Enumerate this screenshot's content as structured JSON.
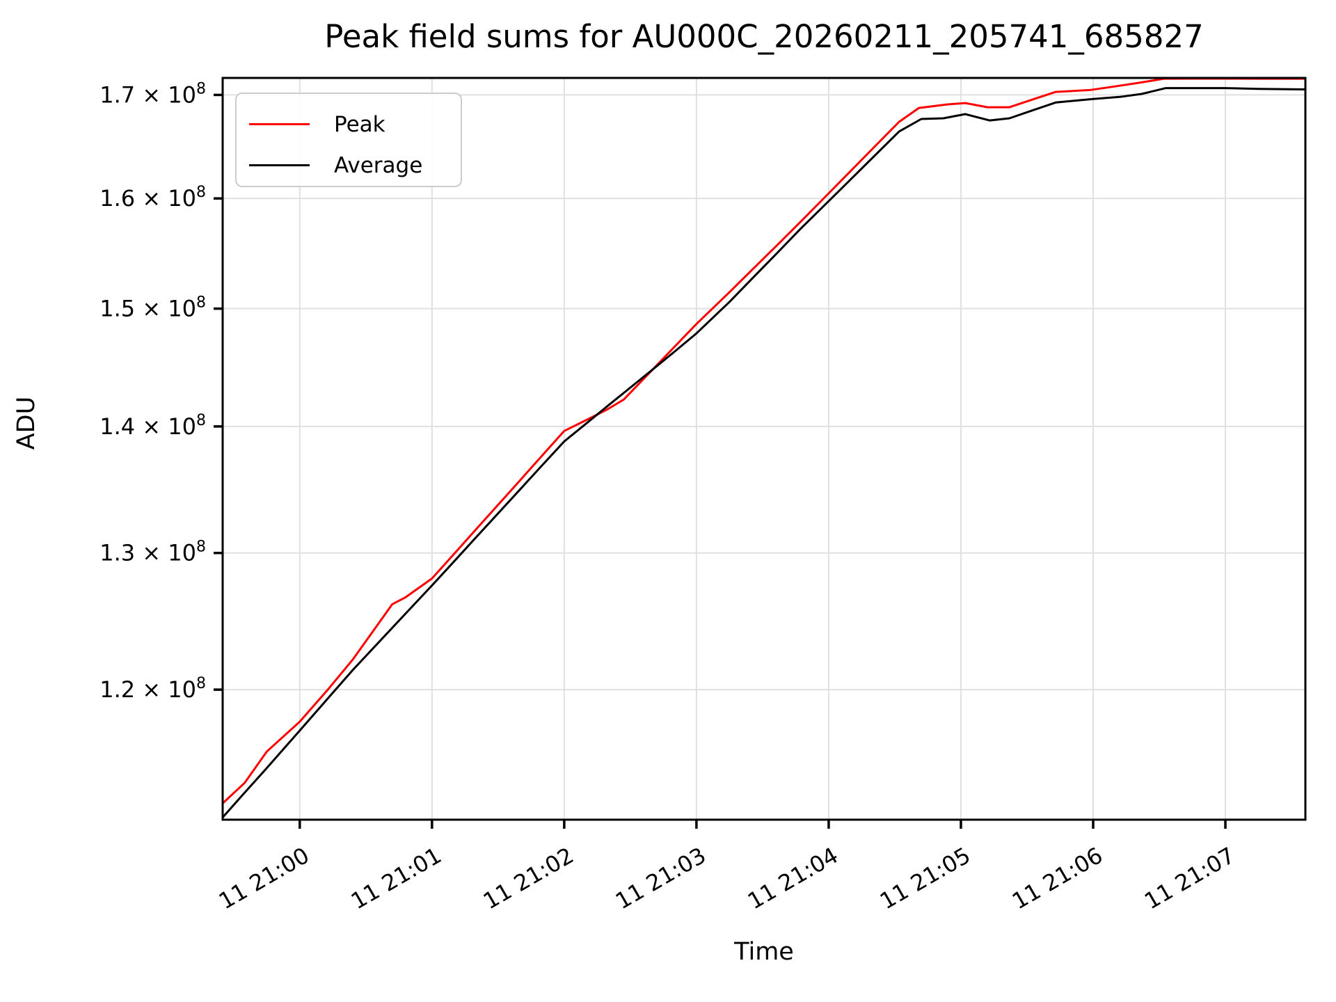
{
  "chart_data": {
    "type": "line",
    "title": "Peak field sums for AU000C_20260211_205741_685827",
    "xlabel": "Time",
    "ylabel": "ADU",
    "y_scale": "log",
    "grid": true,
    "x_unit": "minutes relative to tick '11 21:00'",
    "y_unit_multiplier": 100000000.0,
    "xlim": [
      -0.583,
      7.605
    ],
    "ylim_1e8": [
      1.112,
      1.717
    ],
    "x_ticks": [
      {
        "m": 0,
        "label": "11 21:00"
      },
      {
        "m": 1,
        "label": "11 21:01"
      },
      {
        "m": 2,
        "label": "11 21:02"
      },
      {
        "m": 3,
        "label": "11 21:03"
      },
      {
        "m": 4,
        "label": "11 21:04"
      },
      {
        "m": 5,
        "label": "11 21:05"
      },
      {
        "m": 6,
        "label": "11 21:06"
      },
      {
        "m": 7,
        "label": "11 21:07"
      }
    ],
    "y_ticks": [
      {
        "v_1e8": 1.2,
        "mantissa": "1.2",
        "times": "×",
        "base": "10",
        "exponent": "8"
      },
      {
        "v_1e8": 1.3,
        "mantissa": "1.3",
        "times": "×",
        "base": "10",
        "exponent": "8"
      },
      {
        "v_1e8": 1.4,
        "mantissa": "1.4",
        "times": "×",
        "base": "10",
        "exponent": "8"
      },
      {
        "v_1e8": 1.5,
        "mantissa": "1.5",
        "times": "×",
        "base": "10",
        "exponent": "8"
      },
      {
        "v_1e8": 1.6,
        "mantissa": "1.6",
        "times": "×",
        "base": "10",
        "exponent": "8"
      },
      {
        "v_1e8": 1.7,
        "mantissa": "1.7",
        "times": "×",
        "base": "10",
        "exponent": "8"
      }
    ],
    "legend": {
      "position": "upper left",
      "entries": [
        {
          "name": "Peak",
          "color": "#ff0000"
        },
        {
          "name": "Average",
          "color": "#000000"
        }
      ]
    },
    "series": [
      {
        "name": "Peak",
        "color": "#ff0000",
        "points_m_v1e8": [
          [
            -0.583,
            1.1227
          ],
          [
            -0.417,
            1.1362
          ],
          [
            -0.25,
            1.1572
          ],
          [
            0,
            1.1777
          ],
          [
            0.217,
            1.2005
          ],
          [
            0.4,
            1.2212
          ],
          [
            0.7,
            1.2616
          ],
          [
            0.8,
            1.2667
          ],
          [
            1,
            1.2807
          ],
          [
            1.167,
            1.2993
          ],
          [
            1.333,
            1.3181
          ],
          [
            1.5,
            1.3372
          ],
          [
            1.667,
            1.3566
          ],
          [
            1.833,
            1.3763
          ],
          [
            2,
            1.3963
          ],
          [
            2.167,
            1.4053
          ],
          [
            2.317,
            1.4135
          ],
          [
            2.45,
            1.4222
          ],
          [
            2.617,
            1.4414
          ],
          [
            2.833,
            1.4668
          ],
          [
            3,
            1.4866
          ],
          [
            3.25,
            1.5146
          ],
          [
            3.417,
            1.534
          ],
          [
            3.617,
            1.5576
          ],
          [
            3.783,
            1.5777
          ],
          [
            3.95,
            1.5985
          ],
          [
            4.15,
            1.6238
          ],
          [
            4.333,
            1.6474
          ],
          [
            4.533,
            1.6735
          ],
          [
            4.683,
            1.6871
          ],
          [
            4.9,
            1.6906
          ],
          [
            5.033,
            1.6919
          ],
          [
            5.2,
            1.6878
          ],
          [
            5.367,
            1.6878
          ],
          [
            5.533,
            1.695
          ],
          [
            5.717,
            1.703
          ],
          [
            5.983,
            1.705
          ],
          [
            6.2,
            1.7092
          ],
          [
            6.367,
            1.7125
          ],
          [
            6.533,
            1.7162
          ],
          [
            6.75,
            1.7163
          ],
          [
            7,
            1.7163
          ],
          [
            7.25,
            1.7162
          ],
          [
            7.605,
            1.7162
          ]
        ]
      },
      {
        "name": "Average",
        "color": "#000000",
        "points_m_v1e8": [
          [
            -0.583,
            1.1135
          ],
          [
            -0.417,
            1.1297
          ],
          [
            -0.25,
            1.1461
          ],
          [
            0,
            1.1716
          ],
          [
            0.217,
            1.1943
          ],
          [
            0.4,
            1.2138
          ],
          [
            0.7,
            1.2443
          ],
          [
            0.8,
            1.2546
          ],
          [
            1,
            1.2755
          ],
          [
            1.167,
            1.2936
          ],
          [
            1.333,
            1.3119
          ],
          [
            1.5,
            1.3305
          ],
          [
            1.667,
            1.3494
          ],
          [
            1.833,
            1.3685
          ],
          [
            2,
            1.3878
          ],
          [
            2.167,
            1.4024
          ],
          [
            2.333,
            1.4173
          ],
          [
            2.5,
            1.4322
          ],
          [
            2.667,
            1.4473
          ],
          [
            2.833,
            1.4626
          ],
          [
            3,
            1.4784
          ],
          [
            3.25,
            1.506
          ],
          [
            3.417,
            1.5261
          ],
          [
            3.617,
            1.5505
          ],
          [
            3.783,
            1.5713
          ],
          [
            3.95,
            1.5914
          ],
          [
            4.15,
            1.6159
          ],
          [
            4.333,
            1.6387
          ],
          [
            4.533,
            1.664
          ],
          [
            4.7,
            1.6762
          ],
          [
            4.867,
            1.6769
          ],
          [
            5.033,
            1.681
          ],
          [
            5.217,
            1.6748
          ],
          [
            5.367,
            1.6769
          ],
          [
            5.533,
            1.6843
          ],
          [
            5.717,
            1.6925
          ],
          [
            6,
            1.696
          ],
          [
            6.2,
            1.698
          ],
          [
            6.367,
            1.701
          ],
          [
            6.55,
            1.7068
          ],
          [
            7,
            1.7068
          ],
          [
            7.25,
            1.706
          ],
          [
            7.605,
            1.7055
          ]
        ]
      }
    ],
    "style": {
      "grid_color": "#e0e0e0",
      "spine_color": "#000000",
      "tick_color": "#000000",
      "legend_border_color": "#cccccc",
      "line_width": 3,
      "x_tick_label_rotation_deg": 30
    }
  }
}
